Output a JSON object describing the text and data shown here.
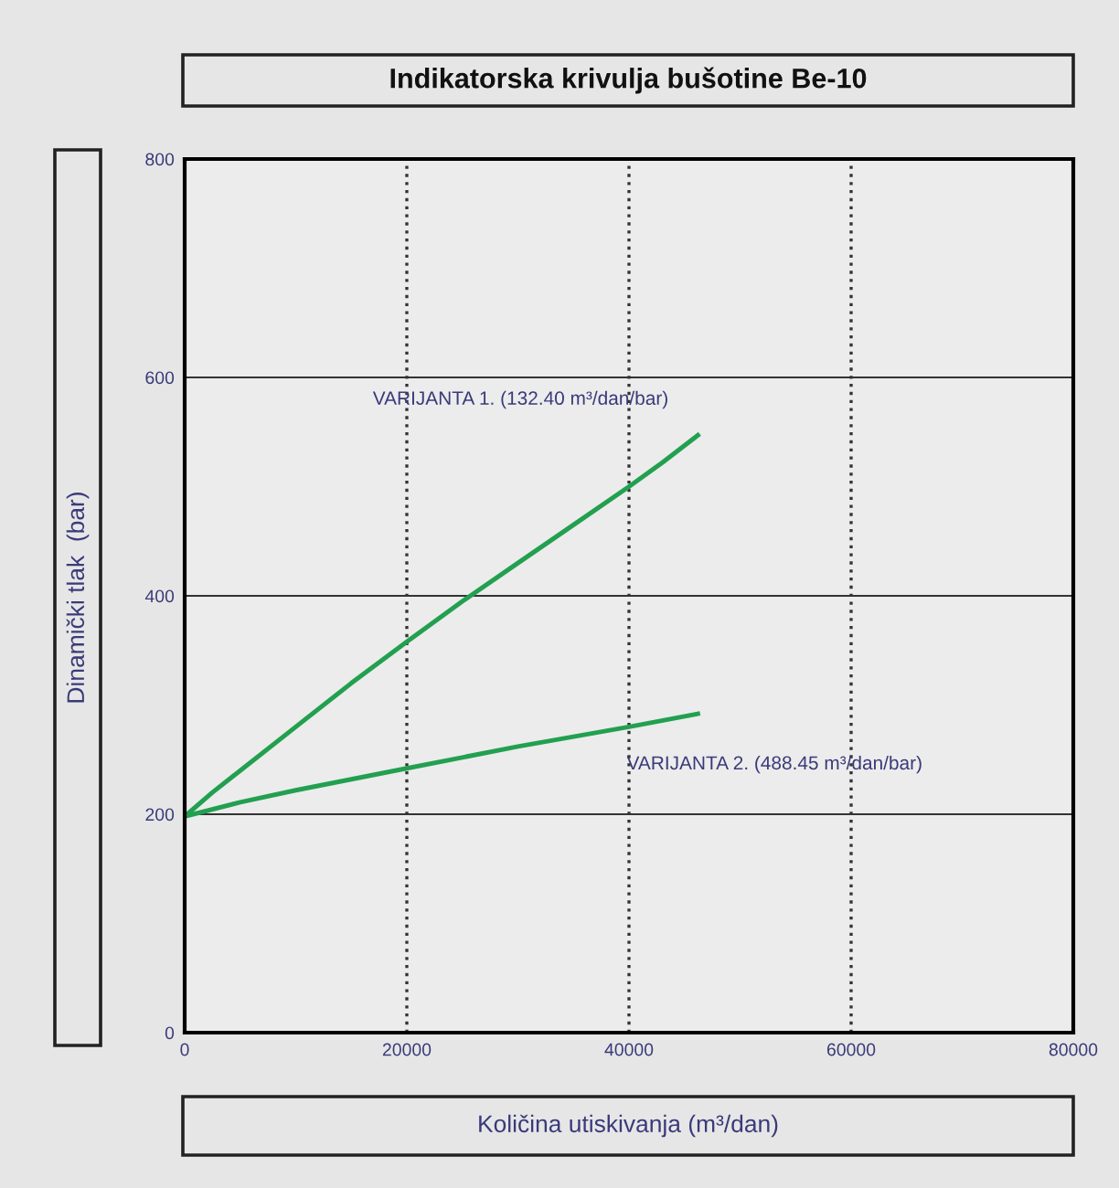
{
  "chart_data": {
    "type": "line",
    "title": "Indikatorska krivulja bušotine Be-10",
    "xlabel": "Količina utiskivanja (m³/dan)",
    "ylabel": "Dinamički tlak  (bar)",
    "series": [
      {
        "color": "#22a050",
        "x": [
          0,
          2500,
          5000,
          10000,
          15000,
          20000,
          25000,
          30000,
          35000,
          40000,
          43000,
          46200
        ],
        "values": [
          198,
          220,
          240,
          280,
          320,
          358,
          395,
          430,
          465,
          500,
          522,
          547
        ]
      },
      {
        "color": "#22a050",
        "x": [
          0,
          5000,
          10000,
          15000,
          20000,
          25000,
          30000,
          35000,
          40000,
          46200
        ],
        "values": [
          198,
          211,
          222,
          232,
          242,
          252,
          262,
          271,
          280,
          292
        ]
      }
    ],
    "annotations": [
      "VARIJANTA 1. (132.40 m³/dan/bar)",
      "VARIJANTA 2. (488.45 m³/dan/bar)"
    ],
    "xlim": [
      0,
      80000
    ],
    "xticks": [
      0,
      20000,
      40000,
      60000,
      80000
    ],
    "ylim": [
      0,
      800
    ],
    "yticks": [
      0,
      200,
      400,
      600,
      800
    ],
    "grid": true,
    "line_style": "solid",
    "marker": "none"
  }
}
